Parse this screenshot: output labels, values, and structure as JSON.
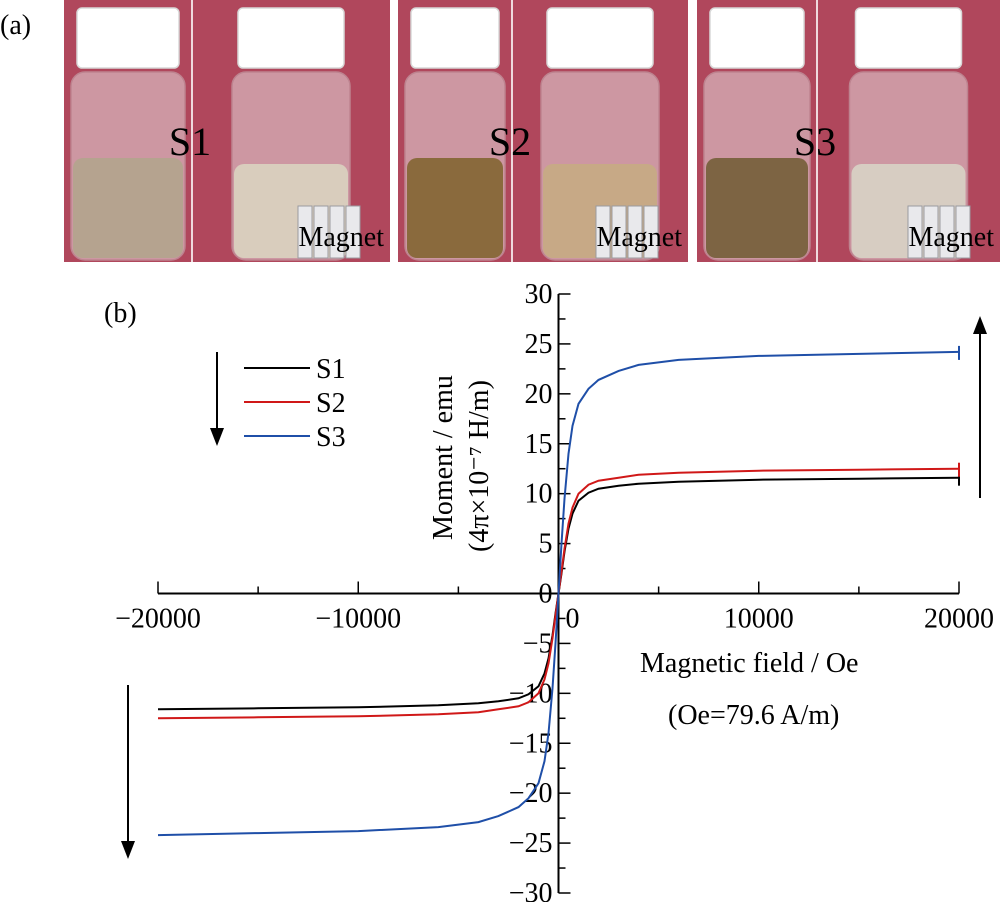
{
  "panel_a": {
    "label": "(a)",
    "photos": [
      {
        "sample": "S1",
        "magnet_label": "Magnet",
        "liquid_before": "#b5a38f",
        "liquid_after": "#d9cdbd"
      },
      {
        "sample": "S2",
        "magnet_label": "Magnet",
        "liquid_before": "#8a6a3d",
        "liquid_after": "#c7a986"
      },
      {
        "sample": "S3",
        "magnet_label": "Magnet",
        "liquid_before": "#7d6443",
        "liquid_after": "#d7cdc2"
      }
    ],
    "background_color": "#b0475c"
  },
  "panel_b": {
    "label": "(b)"
  },
  "chart_data": {
    "type": "line",
    "xlabel": "Magnetic field / Oe",
    "xlabel_note": "(Oe=79.6 A/m)",
    "ylabel_line1": "Moment / emu",
    "ylabel_line2": "(4π×10⁻⁷ H/m)",
    "xlim": [
      -20000,
      20000
    ],
    "ylim": [
      -30,
      30
    ],
    "xticks": [
      -20000,
      -10000,
      0,
      10000,
      20000
    ],
    "yticks": [
      -30,
      -25,
      -20,
      -15,
      -10,
      -5,
      0,
      5,
      10,
      15,
      20,
      25,
      30
    ],
    "grid": false,
    "legend_position": "top-left",
    "series": [
      {
        "name": "S1",
        "color": "#000000",
        "x": [
          -20000,
          -15000,
          -10000,
          -6000,
          -4000,
          -3000,
          -2000,
          -1500,
          -1000,
          -700,
          -500,
          -300,
          -150,
          0,
          150,
          300,
          500,
          700,
          1000,
          1500,
          2000,
          3000,
          4000,
          6000,
          10000,
          15000,
          20000
        ],
        "y": [
          -11.6,
          -11.5,
          -11.4,
          -11.2,
          -11.0,
          -10.8,
          -10.5,
          -10.1,
          -9.3,
          -8.0,
          -6.5,
          -4.2,
          -2.0,
          0,
          2.0,
          4.2,
          6.5,
          8.0,
          9.3,
          10.1,
          10.5,
          10.8,
          11.0,
          11.2,
          11.4,
          11.5,
          11.6
        ]
      },
      {
        "name": "S2",
        "color": "#d01818",
        "x": [
          -20000,
          -15000,
          -10000,
          -6000,
          -4000,
          -3000,
          -2000,
          -1500,
          -1000,
          -700,
          -500,
          -300,
          -150,
          0,
          150,
          300,
          500,
          700,
          1000,
          1500,
          2000,
          3000,
          4000,
          6000,
          10000,
          15000,
          20000
        ],
        "y": [
          -12.5,
          -12.4,
          -12.3,
          -12.1,
          -11.9,
          -11.6,
          -11.3,
          -10.9,
          -10.0,
          -8.6,
          -7.0,
          -4.5,
          -2.2,
          0,
          2.2,
          4.5,
          7.0,
          8.6,
          10.0,
          10.9,
          11.3,
          11.6,
          11.9,
          12.1,
          12.3,
          12.4,
          12.5
        ]
      },
      {
        "name": "S3",
        "color": "#1f4fa8",
        "x": [
          -20000,
          -15000,
          -10000,
          -6000,
          -4000,
          -3000,
          -2000,
          -1500,
          -1000,
          -700,
          -500,
          -300,
          -150,
          0,
          150,
          300,
          500,
          700,
          1000,
          1500,
          2000,
          3000,
          4000,
          6000,
          10000,
          15000,
          20000
        ],
        "y": [
          -24.2,
          -24.0,
          -23.8,
          -23.4,
          -22.9,
          -22.3,
          -21.4,
          -20.5,
          -19.0,
          -16.8,
          -14.0,
          -9.5,
          -5.0,
          0,
          5.0,
          9.5,
          14.0,
          16.8,
          19.0,
          20.5,
          21.4,
          22.3,
          22.9,
          23.4,
          23.8,
          24.0,
          24.2
        ]
      }
    ]
  }
}
